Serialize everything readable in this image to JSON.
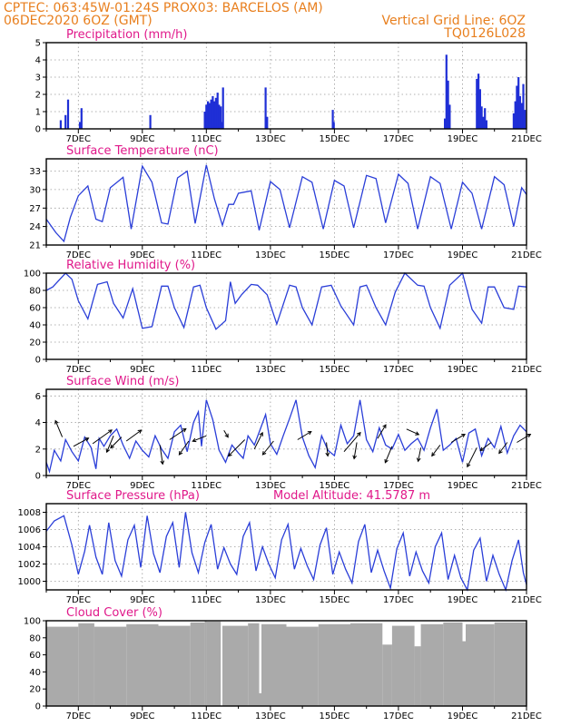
{
  "header": {
    "line1_left": "CPTEC:   063:45W-01:24S   PROX03: BARCELOS (AM)",
    "line2_left": "06DEC2020 6OZ (GMT)",
    "line1_right": "",
    "line2_right": "Vertical Grid Line: 6OZ",
    "line3_right": "TQ0126L028"
  },
  "colors": {
    "header": "#e87f1e",
    "title": "#e0188a",
    "line": "#2a3ed8",
    "bars_precip": "#1f2fd6",
    "bars_cloud": "#aaaaaa"
  },
  "x_labels": [
    "7DEC",
    "9DEC",
    "11DEC",
    "13DEC",
    "15DEC",
    "17DEC",
    "19DEC",
    "21DEC"
  ],
  "x_label_days": [
    1,
    3,
    5,
    7,
    9,
    11,
    13,
    15
  ],
  "chart_data": [
    {
      "id": "precip",
      "type": "bar",
      "title": "Precipitation (mm/h)",
      "ylim": [
        0,
        5
      ],
      "yticks": [
        0,
        1,
        2,
        3,
        4,
        5
      ],
      "xlim": [
        0,
        15
      ],
      "grid": true,
      "bars": [
        [
          0.45,
          0.5
        ],
        [
          0.6,
          0.8
        ],
        [
          0.68,
          1.7
        ],
        [
          1.05,
          0.4
        ],
        [
          1.1,
          1.2
        ],
        [
          3.25,
          0.8
        ],
        [
          4.95,
          1.0
        ],
        [
          5.0,
          1.4
        ],
        [
          5.05,
          1.6
        ],
        [
          5.1,
          1.5
        ],
        [
          5.15,
          1.7
        ],
        [
          5.2,
          1.9
        ],
        [
          5.25,
          1.6
        ],
        [
          5.3,
          1.8
        ],
        [
          5.35,
          2.1
        ],
        [
          5.4,
          1.4
        ],
        [
          5.45,
          1.3
        ],
        [
          5.5,
          0.4
        ],
        [
          5.52,
          2.4
        ],
        [
          6.85,
          2.4
        ],
        [
          6.9,
          0.7
        ],
        [
          8.95,
          1.1
        ],
        [
          8.98,
          0.4
        ],
        [
          12.45,
          0.6
        ],
        [
          12.5,
          4.3
        ],
        [
          12.55,
          2.8
        ],
        [
          12.6,
          1.4
        ],
        [
          13.45,
          2.9
        ],
        [
          13.5,
          3.2
        ],
        [
          13.55,
          2.3
        ],
        [
          13.6,
          1.3
        ],
        [
          13.65,
          0.7
        ],
        [
          13.7,
          1.2
        ],
        [
          13.75,
          0.5
        ],
        [
          14.6,
          0.9
        ],
        [
          14.65,
          1.6
        ],
        [
          14.7,
          2.5
        ],
        [
          14.75,
          3.0
        ],
        [
          14.8,
          1.9
        ],
        [
          14.85,
          1.5
        ],
        [
          14.9,
          2.6
        ],
        [
          14.95,
          1.1
        ]
      ]
    },
    {
      "id": "temp",
      "type": "line",
      "title": "Surface Temperature (nC)",
      "ylim": [
        21,
        35
      ],
      "yticks": [
        21,
        24,
        27,
        30,
        33
      ],
      "xlim": [
        0,
        15
      ],
      "grid": true,
      "x": [
        0,
        0.3,
        0.55,
        0.75,
        1.0,
        1.3,
        1.55,
        1.75,
        2.0,
        2.4,
        2.65,
        3.0,
        3.3,
        3.6,
        3.8,
        4.1,
        4.4,
        4.65,
        5.0,
        5.25,
        5.5,
        5.7,
        5.85,
        6.0,
        6.4,
        6.65,
        7.0,
        7.3,
        7.6,
        8.0,
        8.3,
        8.65,
        9.0,
        9.3,
        9.6,
        10.0,
        10.3,
        10.6,
        11.0,
        11.3,
        11.6,
        12.0,
        12.3,
        12.65,
        13.0,
        13.3,
        13.6,
        14.0,
        14.3,
        14.6,
        14.85,
        15.0
      ],
      "y": [
        25.2,
        23.0,
        21.6,
        25.5,
        29.0,
        30.6,
        25.2,
        24.8,
        30.3,
        32.0,
        23.6,
        33.8,
        31.2,
        24.6,
        24.4,
        31.9,
        33.0,
        24.5,
        34.0,
        28.5,
        24.2,
        27.6,
        27.6,
        29.4,
        29.8,
        23.4,
        31.3,
        30.0,
        23.8,
        32.1,
        31.2,
        23.6,
        31.5,
        30.6,
        23.8,
        32.3,
        31.8,
        24.6,
        32.5,
        31.0,
        23.6,
        32.1,
        31.0,
        23.6,
        31.2,
        29.4,
        23.6,
        32.1,
        30.8,
        24.0,
        30.3,
        29.2
      ]
    },
    {
      "id": "rh",
      "type": "line",
      "title": "Relative Humidity (%)",
      "ylim": [
        0,
        100
      ],
      "yticks": [
        0,
        20,
        40,
        60,
        80,
        100
      ],
      "xlim": [
        0,
        15
      ],
      "grid": true,
      "x": [
        0,
        0.2,
        0.6,
        0.8,
        1.0,
        1.3,
        1.6,
        1.9,
        2.1,
        2.4,
        2.7,
        3.0,
        3.3,
        3.6,
        3.8,
        4.0,
        4.3,
        4.6,
        4.8,
        5.0,
        5.3,
        5.6,
        5.75,
        5.9,
        6.1,
        6.4,
        6.6,
        6.9,
        7.2,
        7.6,
        7.8,
        8.0,
        8.3,
        8.6,
        8.9,
        9.2,
        9.6,
        9.8,
        10.0,
        10.3,
        10.6,
        10.9,
        11.2,
        11.6,
        11.8,
        12.0,
        12.3,
        12.6,
        13.0,
        13.3,
        13.6,
        13.8,
        14.0,
        14.3,
        14.6,
        14.75,
        15.0
      ],
      "y": [
        80,
        84,
        100,
        93,
        68,
        47,
        87,
        90,
        65,
        48,
        82,
        36,
        38,
        85,
        85,
        60,
        37,
        84,
        86,
        60,
        35,
        45,
        90,
        65,
        75,
        87,
        86,
        75,
        41,
        86,
        84,
        60,
        40,
        84,
        86,
        62,
        40,
        84,
        86,
        60,
        40,
        78,
        100,
        86,
        85,
        60,
        36,
        86,
        100,
        58,
        42,
        84,
        84,
        60,
        58,
        85,
        84
      ]
    },
    {
      "id": "wind",
      "type": "line",
      "title": "Surface Wind (m/s)",
      "ylim": [
        0,
        6.5
      ],
      "yticks": [
        0,
        2,
        4,
        6
      ],
      "xlim": [
        0,
        15
      ],
      "grid": true,
      "x": [
        0,
        0.1,
        0.25,
        0.45,
        0.6,
        0.8,
        1.0,
        1.2,
        1.4,
        1.55,
        1.65,
        1.8,
        2.0,
        2.2,
        2.4,
        2.6,
        2.8,
        3.0,
        3.2,
        3.4,
        3.6,
        3.8,
        4.0,
        4.2,
        4.4,
        4.6,
        4.75,
        4.85,
        5.0,
        5.2,
        5.4,
        5.6,
        5.8,
        6.0,
        6.15,
        6.3,
        6.5,
        6.7,
        6.85,
        7.0,
        7.2,
        7.4,
        7.6,
        7.8,
        8.0,
        8.2,
        8.4,
        8.6,
        8.8,
        9.0,
        9.2,
        9.4,
        9.6,
        9.8,
        10.0,
        10.2,
        10.4,
        10.6,
        10.8,
        11.0,
        11.2,
        11.4,
        11.6,
        11.8,
        12.0,
        12.2,
        12.4,
        12.6,
        12.8,
        13.0,
        13.2,
        13.4,
        13.6,
        13.8,
        14.0,
        14.2,
        14.4,
        14.6,
        14.8,
        15.0
      ],
      "y": [
        1.0,
        0.3,
        1.9,
        1.1,
        2.7,
        1.8,
        1.1,
        2.9,
        2.1,
        0.5,
        2.8,
        2.2,
        3.0,
        3.5,
        2.3,
        1.3,
        2.6,
        1.9,
        1.4,
        3.0,
        2.0,
        1.3,
        3.3,
        3.8,
        1.8,
        4.0,
        4.8,
        2.2,
        5.7,
        4.2,
        1.9,
        1.0,
        2.3,
        1.7,
        1.3,
        3.0,
        2.3,
        3.6,
        4.6,
        2.4,
        1.6,
        3.0,
        4.3,
        5.7,
        2.9,
        1.5,
        0.6,
        3.0,
        1.9,
        1.5,
        3.8,
        2.4,
        3.0,
        5.7,
        2.7,
        1.8,
        3.6,
        2.3,
        2.0,
        3.1,
        1.9,
        2.4,
        2.8,
        1.9,
        3.6,
        5.0,
        1.9,
        2.3,
        2.8,
        1.0,
        3.2,
        3.5,
        1.5,
        2.8,
        2.1,
        3.7,
        1.7,
        3.0,
        3.8,
        3.3
      ],
      "vectors": [
        [
          0.5,
          2.9,
          -0.25,
          0.6
        ],
        [
          0.85,
          2.2,
          0.55,
          0.3
        ],
        [
          1.45,
          2.4,
          0.7,
          0.5
        ],
        [
          2.1,
          3.0,
          -0.25,
          -0.6
        ],
        [
          2.35,
          2.9,
          -0.4,
          -0.4
        ],
        [
          2.5,
          2.6,
          0.55,
          0.4
        ],
        [
          3.55,
          2.3,
          0.1,
          -0.7
        ],
        [
          3.85,
          2.7,
          0.6,
          0.4
        ],
        [
          4.45,
          2.6,
          -0.35,
          -0.5
        ],
        [
          5.0,
          3.0,
          -0.5,
          -0.2
        ],
        [
          5.55,
          3.4,
          0.15,
          -0.25
        ],
        [
          6.2,
          2.7,
          -0.6,
          -0.6
        ],
        [
          6.5,
          2.0,
          0.3,
          0.6
        ],
        [
          7.1,
          2.6,
          -0.4,
          -0.5
        ],
        [
          7.85,
          2.7,
          0.5,
          0.3
        ],
        [
          8.75,
          2.5,
          0.05,
          -0.5
        ],
        [
          9.3,
          1.8,
          0.6,
          0.7
        ],
        [
          9.7,
          2.5,
          -0.1,
          -0.6
        ],
        [
          10.35,
          2.8,
          0.3,
          0.5
        ],
        [
          10.8,
          2.2,
          -0.25,
          -0.6
        ],
        [
          11.25,
          3.5,
          0.45,
          -0.2
        ],
        [
          11.7,
          2.1,
          -0.1,
          -0.5
        ],
        [
          12.3,
          2.3,
          -0.3,
          -0.4
        ],
        [
          12.65,
          2.5,
          0.5,
          0.3
        ],
        [
          13.45,
          2.1,
          -0.35,
          -0.7
        ],
        [
          13.9,
          2.5,
          -0.4,
          -0.3
        ],
        [
          14.4,
          2.5,
          -0.3,
          -0.4
        ],
        [
          14.7,
          2.5,
          0.5,
          0.3
        ]
      ]
    },
    {
      "id": "pres",
      "type": "line",
      "title": "Surface Pressure (hPa)",
      "annotation": "Model Altitude: 41.5787 m",
      "ylim": [
        999,
        1009
      ],
      "yticks": [
        1000,
        1002,
        1004,
        1006,
        1008
      ],
      "xlim": [
        0,
        15
      ],
      "grid": true,
      "x": [
        0,
        0.25,
        0.55,
        0.8,
        1.0,
        1.2,
        1.35,
        1.55,
        1.75,
        1.95,
        2.15,
        2.35,
        2.55,
        2.75,
        2.95,
        3.15,
        3.35,
        3.55,
        3.75,
        3.95,
        4.15,
        4.35,
        4.55,
        4.75,
        4.95,
        5.15,
        5.35,
        5.55,
        5.75,
        5.95,
        6.15,
        6.35,
        6.55,
        6.75,
        6.95,
        7.15,
        7.35,
        7.55,
        7.75,
        7.95,
        8.15,
        8.35,
        8.55,
        8.75,
        8.95,
        9.15,
        9.35,
        9.55,
        9.75,
        9.95,
        10.15,
        10.35,
        10.55,
        10.75,
        10.95,
        11.15,
        11.35,
        11.55,
        11.75,
        11.95,
        12.15,
        12.35,
        12.55,
        12.75,
        12.95,
        13.15,
        13.35,
        13.55,
        13.75,
        13.95,
        14.15,
        14.35,
        14.55,
        14.75,
        14.9,
        15.0
      ],
      "y": [
        1005.8,
        1007.0,
        1007.6,
        1004.2,
        1000.8,
        1003.5,
        1006.5,
        1002.8,
        1000.8,
        1006.8,
        1002.4,
        1000.6,
        1004.8,
        1006.5,
        1001.6,
        1007.6,
        1003.2,
        1001.0,
        1005.2,
        1006.8,
        1001.6,
        1008.0,
        1003.3,
        1001.0,
        1004.5,
        1006.6,
        1001.4,
        1003.9,
        1002.0,
        1000.8,
        1005.2,
        1006.8,
        1001.2,
        1004.0,
        1002.0,
        1000.4,
        1004.8,
        1006.6,
        1001.4,
        1003.8,
        1001.8,
        1000.2,
        1004.2,
        1006.2,
        1000.8,
        1003.4,
        1001.4,
        999.8,
        1004.6,
        1006.6,
        1001.0,
        1003.6,
        1001.2,
        999.2,
        1003.8,
        1005.6,
        1000.6,
        1003.4,
        1001.2,
        999.8,
        1004.0,
        1005.6,
        1000.2,
        1003.0,
        1000.4,
        998.8,
        1003.6,
        1005.0,
        1000.0,
        1003.0,
        1000.8,
        999.0,
        1002.4,
        1004.8,
        1001.0,
        999.6
      ]
    },
    {
      "id": "cloud",
      "type": "bar",
      "title": "Cloud Cover (%)",
      "ylim": [
        0,
        100
      ],
      "yticks": [
        0,
        20,
        40,
        60,
        80,
        100
      ],
      "xlim": [
        0,
        15
      ],
      "grid": false,
      "segments": [
        [
          0.0,
          1.0,
          93
        ],
        [
          1.0,
          1.5,
          97
        ],
        [
          1.5,
          2.5,
          93
        ],
        [
          2.5,
          3.5,
          96
        ],
        [
          3.5,
          4.5,
          94
        ],
        [
          4.5,
          4.95,
          98
        ],
        [
          4.95,
          5.0,
          100
        ],
        [
          5.0,
          5.45,
          99
        ],
        [
          5.45,
          5.5,
          0
        ],
        [
          5.5,
          6.3,
          94
        ],
        [
          6.3,
          6.65,
          97
        ],
        [
          6.65,
          6.72,
          15
        ],
        [
          6.72,
          7.5,
          96
        ],
        [
          7.5,
          8.5,
          93
        ],
        [
          8.5,
          9.5,
          96
        ],
        [
          9.5,
          10.5,
          97
        ],
        [
          10.5,
          10.8,
          72
        ],
        [
          10.8,
          11.5,
          94
        ],
        [
          11.5,
          11.7,
          70
        ],
        [
          11.7,
          12.4,
          96
        ],
        [
          12.4,
          13.0,
          98
        ],
        [
          13.0,
          13.1,
          76
        ],
        [
          13.1,
          14.0,
          96
        ],
        [
          14.0,
          15.0,
          98
        ]
      ]
    }
  ]
}
